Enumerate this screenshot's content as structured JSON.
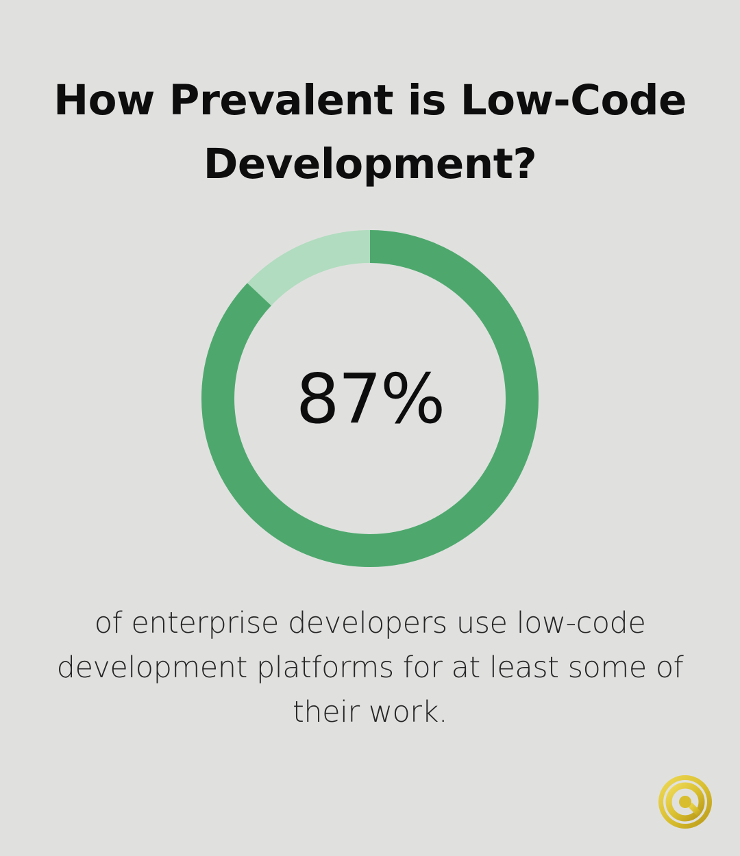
{
  "title": "How Prevalent is Low-Code Development?",
  "chart_data": {
    "type": "pie",
    "subtype": "donut",
    "value": 87,
    "value_label": "87%",
    "description": "of enterprise developers use low-code development platforms for at least some of their work.",
    "slices": [
      {
        "value": 87,
        "color": "#4ea86d"
      },
      {
        "value": 13,
        "color": "#b1dcbf"
      }
    ]
  },
  "colors": {
    "background": "#e0e1df",
    "accent": "#4ea86d",
    "accent_light": "#b1dcbf",
    "text": "#0d0d0d",
    "logo_gold": "#d8be2e"
  },
  "icons": {
    "logo": "gold-circle-q-logo"
  }
}
